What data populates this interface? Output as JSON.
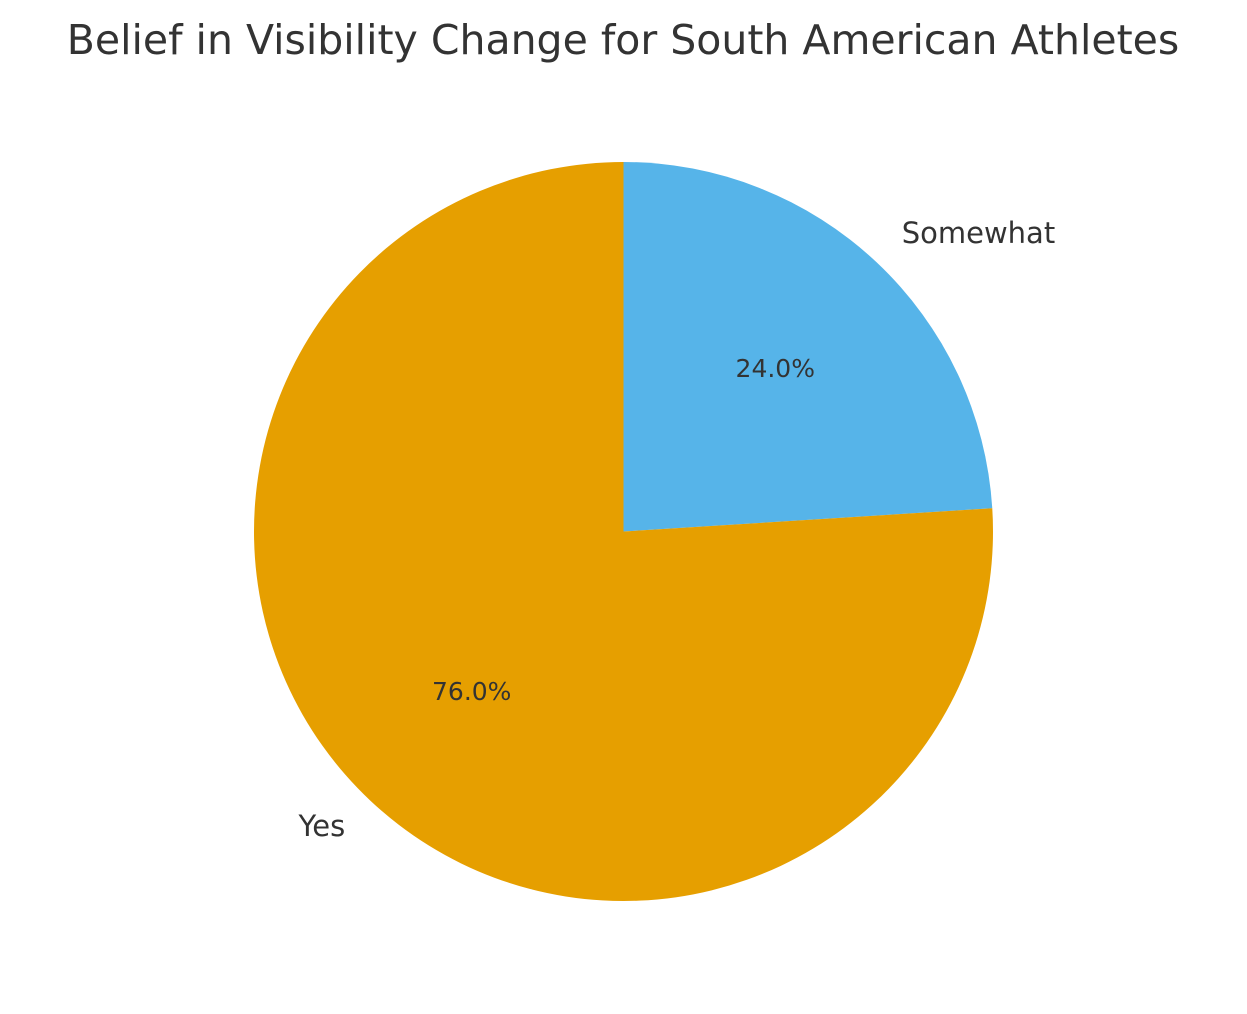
{
  "chart_data": {
    "type": "pie",
    "title": "Belief in Visibility Change for South American Athletes",
    "categories": [
      "Somewhat",
      "Yes"
    ],
    "values": [
      24.0,
      76.0
    ],
    "percent_labels": [
      "24.0%",
      "76.0%"
    ],
    "colors": [
      "#56B4E9",
      "#E69F00"
    ],
    "start_angle_deg": 90,
    "direction": "clockwise",
    "legend": "none"
  }
}
